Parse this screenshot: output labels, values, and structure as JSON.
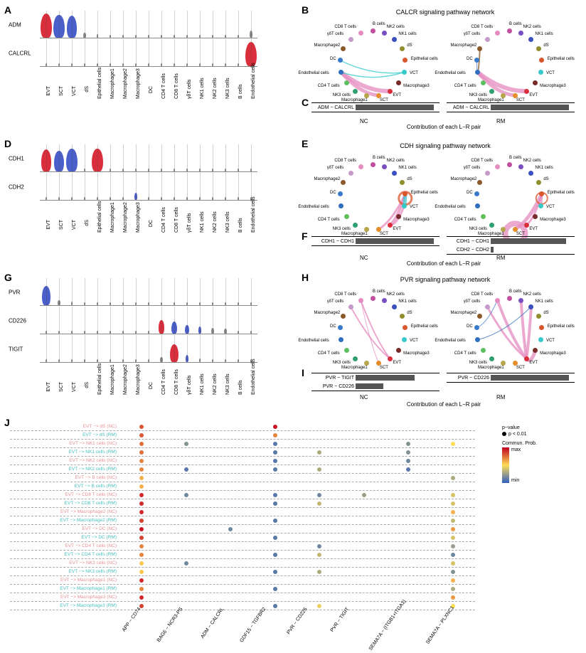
{
  "cell_types": [
    "EVT",
    "SCT",
    "VCT",
    "dS",
    "Epithelial cells",
    "Macrophage1",
    "Macrophage2",
    "Macrophage3",
    "DC",
    "CD4 T cells",
    "CD8 T cells",
    "γδT cells",
    "NK1 cells",
    "NK2 cells",
    "NK3 cells",
    "B cells",
    "Endothelial cells"
  ],
  "cell_colors": {
    "EVT": "#d92f3c",
    "SCT": "#e58c2b",
    "VCT": "#36c9c9",
    "dS": "#8e8e2b",
    "Epithelial cells": "#d9552b",
    "Macrophage1": "#b7a64b",
    "Macrophage2": "#8a5a2b",
    "Macrophage3": "#7a2b2b",
    "DC": "#3a7acb",
    "CD4 T cells": "#5fbf5f",
    "CD8 T cells": "#e58cc0",
    "γδT cells": "#c59acb",
    "NK1 cells": "#3a4fc0",
    "NK2 cells": "#7a4fc0",
    "NK3 cells": "#2f9f6f",
    "B cells": "#c04f9f",
    "Endothelial cells": "#2f6fbf"
  },
  "panelA": {
    "genes": [
      "ADM",
      "CALCRL"
    ],
    "expr": {
      "ADM": {
        "EVT": 1.0,
        "SCT": 0.95,
        "VCT": 0.9,
        "dS": 0.2,
        "Epithelial cells": 0.15,
        "Macrophage1": 0.05,
        "Macrophage2": 0.05,
        "Macrophage3": 0.05,
        "DC": 0.05,
        "CD4 T cells": 0.05,
        "CD8 T cells": 0.05,
        "γδT cells": 0.05,
        "NK1 cells": 0.05,
        "NK2 cells": 0.05,
        "NK3 cells": 0.1,
        "B cells": 0.05,
        "Endothelial cells": 0.3
      },
      "CALCRL": {
        "EVT": 0.05,
        "SCT": 0.05,
        "VCT": 0.05,
        "dS": 0.05,
        "Epithelial cells": 0.05,
        "Macrophage1": 0.05,
        "Macrophage2": 0.05,
        "Macrophage3": 0.05,
        "DC": 0.05,
        "CD4 T cells": 0.05,
        "CD8 T cells": 0.05,
        "γδT cells": 0.05,
        "NK1 cells": 0.05,
        "NK2 cells": 0.05,
        "NK3 cells": 0.05,
        "B cells": 0.05,
        "Endothelial cells": 1.0
      }
    },
    "violin_colors": {
      "ADM": {
        "EVT": "#d92f3c",
        "SCT": "#4a5fc9",
        "VCT": "#4a5fc9",
        "default": "#888"
      },
      "CALCRL": {
        "Endothelial cells": "#d92f3c",
        "default": "#888"
      }
    }
  },
  "panelD": {
    "genes": [
      "CDH1",
      "CDH2"
    ],
    "expr": {
      "CDH1": {
        "EVT": 0.9,
        "SCT": 0.85,
        "VCT": 0.95,
        "dS": 0.1,
        "Epithelial cells": 0.95,
        "Macrophage1": 0.05,
        "Macrophage2": 0.05,
        "Macrophage3": 0.05,
        "DC": 0.05,
        "CD4 T cells": 0.05,
        "CD8 T cells": 0.05,
        "γδT cells": 0.05,
        "NK1 cells": 0.05,
        "NK2 cells": 0.05,
        "NK3 cells": 0.05,
        "B cells": 0.05,
        "Endothelial cells": 0.1
      },
      "CDH2": {
        "EVT": 0.05,
        "SCT": 0.05,
        "VCT": 0.05,
        "dS": 0.05,
        "Epithelial cells": 0.05,
        "Macrophage1": 0.05,
        "Macrophage2": 0.05,
        "Macrophage3": 0.3,
        "DC": 0.1,
        "CD4 T cells": 0.05,
        "CD8 T cells": 0.05,
        "γδT cells": 0.05,
        "NK1 cells": 0.05,
        "NK2 cells": 0.05,
        "NK3 cells": 0.05,
        "B cells": 0.05,
        "Endothelial cells": 0.1
      }
    },
    "violin_colors": {
      "CDH1": {
        "EVT": "#d92f3c",
        "SCT": "#4a5fc9",
        "VCT": "#4a5fc9",
        "Epithelial cells": "#d92f3c",
        "default": "#888"
      },
      "CDH2": {
        "Macrophage3": "#4a5fc9",
        "default": "#888"
      }
    }
  },
  "panelG": {
    "genes": [
      "PVR",
      "CD226",
      "TIGIT"
    ],
    "expr": {
      "PVR": {
        "EVT": 0.8,
        "SCT": 0.2,
        "VCT": 0.15,
        "dS": 0.1,
        "Epithelial cells": 0.1,
        "Macrophage1": 0.05,
        "Macrophage2": 0.05,
        "Macrophage3": 0.05,
        "DC": 0.05,
        "CD4 T cells": 0.05,
        "CD8 T cells": 0.05,
        "γδT cells": 0.05,
        "NK1 cells": 0.05,
        "NK2 cells": 0.05,
        "NK3 cells": 0.05,
        "B cells": 0.05,
        "Endothelial cells": 0.1
      },
      "CD226": {
        "EVT": 0.05,
        "SCT": 0.05,
        "VCT": 0.05,
        "dS": 0.05,
        "Epithelial cells": 0.05,
        "Macrophage1": 0.1,
        "Macrophage2": 0.1,
        "Macrophage3": 0.1,
        "DC": 0.1,
        "CD4 T cells": 0.55,
        "CD8 T cells": 0.5,
        "γδT cells": 0.35,
        "NK1 cells": 0.3,
        "NK2 cells": 0.25,
        "NK3 cells": 0.2,
        "B cells": 0.1,
        "Endothelial cells": 0.05
      },
      "TIGIT": {
        "EVT": 0.05,
        "SCT": 0.05,
        "VCT": 0.05,
        "dS": 0.05,
        "Epithelial cells": 0.05,
        "Macrophage1": 0.05,
        "Macrophage2": 0.05,
        "Macrophage3": 0.05,
        "DC": 0.05,
        "CD4 T cells": 0.2,
        "CD8 T cells": 0.75,
        "γδT cells": 0.3,
        "NK1 cells": 0.15,
        "NK2 cells": 0.1,
        "NK3 cells": 0.1,
        "B cells": 0.05,
        "Endothelial cells": 0.05
      }
    },
    "violin_colors": {
      "PVR": {
        "EVT": "#4a5fc9",
        "default": "#888"
      },
      "CD226": {
        "CD4 T cells": "#d92f3c",
        "CD8 T cells": "#4a5fc9",
        "γδT cells": "#4a5fc9",
        "NK1 cells": "#4a5fc9",
        "default": "#888"
      },
      "TIGIT": {
        "CD8 T cells": "#d92f3c",
        "γδT cells": "#4a5fc9",
        "default": "#888"
      }
    }
  },
  "networks": {
    "B": {
      "title": "CALCR signaling pathway network",
      "NC": {
        "edges": [
          {
            "from": "SCT",
            "to": "Endothelial cells",
            "w": 5,
            "color": "#e58cc0"
          },
          {
            "from": "EVT",
            "to": "Endothelial cells",
            "w": 6,
            "color": "#e58cc0"
          },
          {
            "from": "VCT",
            "to": "DC",
            "w": 1.5,
            "color": "#36c9c9"
          },
          {
            "from": "VCT",
            "to": "Endothelial cells",
            "w": 1.5,
            "color": "#36c9c9"
          }
        ]
      },
      "RM": {
        "edges": [
          {
            "from": "SCT",
            "to": "Endothelial cells",
            "w": 5,
            "color": "#e58cc0"
          },
          {
            "from": "EVT",
            "to": "Endothelial cells",
            "w": 6,
            "color": "#e58cc0"
          },
          {
            "from": "Macrophage2",
            "to": "Endothelial cells",
            "w": 2,
            "color": "#8a5a2b"
          },
          {
            "from": "DC",
            "to": "Endothelial cells",
            "w": 1,
            "color": "#3a7acb"
          }
        ]
      }
    },
    "E": {
      "title": "CDH signaling pathway network",
      "NC": {
        "edges": [
          {
            "from": "EVT",
            "to": "VCT",
            "w": 3,
            "color": "#e58cc0"
          },
          {
            "from": "EVT",
            "to": "Epithelial cells",
            "w": 4,
            "color": "#e58cc0"
          },
          {
            "from": "SCT",
            "to": "Epithelial cells",
            "w": 3,
            "color": "#e58cc0"
          },
          {
            "from": "VCT",
            "to": "Epithelial cells",
            "w": 5,
            "color": "#36c9c9"
          },
          {
            "from": "Epithelial cells",
            "to": "Epithelial cells",
            "w": 3,
            "color": "#d9552b",
            "self": true
          }
        ]
      },
      "RM": {
        "edges": [
          {
            "from": "SCT",
            "to": "Epithelial cells",
            "w": 5,
            "color": "#e58cc0"
          },
          {
            "from": "EVT",
            "to": "Epithelial cells",
            "w": 3,
            "color": "#e58cc0"
          },
          {
            "from": "VCT",
            "to": "Epithelial cells",
            "w": 3,
            "color": "#e58cc0"
          },
          {
            "from": "SCT",
            "to": "SCT",
            "w": 8,
            "color": "#e58cc0",
            "self": true
          },
          {
            "from": "Epithelial cells",
            "to": "Epithelial cells",
            "w": 2,
            "color": "#d9552b",
            "self": true
          }
        ]
      }
    },
    "H": {
      "title": "PVR signaling pathway network",
      "NC": {
        "edges": [
          {
            "from": "EVT",
            "to": "CD8 T cells",
            "w": 2,
            "color": "#e58cc0"
          },
          {
            "from": "EVT",
            "to": "γδT cells",
            "w": 2,
            "color": "#e58cc0"
          },
          {
            "from": "SCT",
            "to": "CD8 T cells",
            "w": 1,
            "color": "#e58cc0"
          }
        ]
      },
      "RM": {
        "edges": [
          {
            "from": "EVT",
            "to": "NK2 cells",
            "w": 4,
            "color": "#e58cc0"
          },
          {
            "from": "EVT",
            "to": "NK1 cells",
            "w": 4,
            "color": "#e58cc0"
          },
          {
            "from": "EVT",
            "to": "CD8 T cells",
            "w": 4,
            "color": "#e58cc0"
          },
          {
            "from": "EVT",
            "to": "Macrophage3",
            "w": 5,
            "color": "#e58cc0"
          },
          {
            "from": "EVT",
            "to": "γδT cells",
            "w": 3,
            "color": "#e58cc0"
          },
          {
            "from": "DC",
            "to": "CD8 T cells",
            "w": 1,
            "color": "#3a7acb"
          },
          {
            "from": "Endothelial cells",
            "to": "NK1 cells",
            "w": 1,
            "color": "#2f6fbf"
          }
        ]
      }
    }
  },
  "contrib": {
    "C": {
      "NC": [
        {
          "pair": "ADM − CALCRL",
          "v": 1.0
        }
      ],
      "RM": [
        {
          "pair": "ADM − CALCRL",
          "v": 1.0
        }
      ],
      "caption": "Contribution of each L−R pair"
    },
    "F": {
      "NC": [
        {
          "pair": "CDH1 − CDH1",
          "v": 1.0
        }
      ],
      "RM": [
        {
          "pair": "CDH1 − CDH1",
          "v": 0.96
        },
        {
          "pair": "CDH2 − CDH2",
          "v": 0.04
        }
      ],
      "caption": "Contribution of each L−R pair"
    },
    "I": {
      "NC": [
        {
          "pair": "PVR − TIGIT",
          "v": 0.75
        },
        {
          "pair": "PVR − CD226",
          "v": 0.35
        }
      ],
      "RM": [
        {
          "pair": "PVR − CD226",
          "v": 1.0
        }
      ],
      "caption": "Contribution of each L−R pair"
    }
  },
  "panelJ": {
    "y": [
      "EVT −> dS (NC)",
      "EVT −> dS (RM)",
      "EVT −> NK1 cells (NC)",
      "EVT −> NK1 cells (RM)",
      "EVT −> NK2 cells (NC)",
      "EVT −> NK2 cells (RM)",
      "EVT −> B cells (NC)",
      "EVT −> B cells (RM)",
      "EVT −> CD8 T cells (NC)",
      "EVT −> CD8 T cells (RM)",
      "EVT −> Macrophage2 (NC)",
      "EVT −> Macrophage2 (RM)",
      "EVT −> DC (NC)",
      "EVT −> DC (RM)",
      "EVT −> CD4 T cells (NC)",
      "EVT −> CD4 T cells (RM)",
      "EVT −> NK3 cells (NC)",
      "EVT −> NK3 cells (RM)",
      "EVT −> Macrophage1 (NC)",
      "EVT −> Macrophage1 (RM)",
      "EVT −> Macrophage3 (NC)",
      "EVT −> Macrophage3 (RM)"
    ],
    "y_colors_nc": "#e89090",
    "y_colors_rm": "#46bfbf",
    "x": [
      "APP − CD74",
      "BAG6 − NCR3-PS",
      "ADM − CALCRL",
      "GDF15 − TGFBR2",
      "PVR − CD226",
      "PVR − TIGIT",
      "SEMA7A −\n(ITGB1+ITGA1)",
      "SEMA7A − PLXNC1"
    ],
    "dots": {
      "0": {
        "0": 0.8,
        "3": 0.95
      },
      "1": {
        "0": 0.8,
        "3": 0.7
      },
      "2": {
        "0": 0.75,
        "1": 0.2,
        "3": 0.1,
        "6": 0.2,
        "7": 0.5
      },
      "3": {
        "0": 0.75,
        "3": 0.1,
        "4": 0.3,
        "6": 0.2
      },
      "4": {
        "0": 0.7,
        "3": 0.1,
        "6": 0.15
      },
      "5": {
        "0": 0.7,
        "1": 0.1,
        "3": 0.1,
        "4": 0.3,
        "6": 0.1
      },
      "6": {
        "0": 0.6,
        "7": 0.3
      },
      "7": {
        "0": 0.6
      },
      "8": {
        "0": 0.9,
        "1": 0.15,
        "3": 0.1,
        "4": 0.15,
        "5": 0.25,
        "7": 0.4
      },
      "9": {
        "0": 0.9,
        "3": 0.1,
        "4": 0.35,
        "7": 0.4
      },
      "10": {
        "0": 0.9,
        "7": 0.6
      },
      "11": {
        "0": 0.85,
        "3": 0.1,
        "7": 0.35
      },
      "12": {
        "0": 0.95,
        "2": 0.15,
        "7": 0.65
      },
      "13": {
        "0": 0.85,
        "3": 0.1,
        "7": 0.4
      },
      "14": {
        "0": 0.7,
        "4": 0.15,
        "7": 0.25
      },
      "15": {
        "0": 0.7,
        "3": 0.1,
        "4": 0.35,
        "7": 0.15
      },
      "16": {
        "0": 0.55,
        "1": 0.15,
        "7": 0.4
      },
      "17": {
        "0": 0.55,
        "3": 0.1,
        "4": 0.3,
        "7": 0.2
      },
      "18": {
        "0": 0.9,
        "7": 0.6
      },
      "19": {
        "0": 0.7,
        "3": 0.1,
        "7": 0.3
      },
      "20": {
        "0": 0.9,
        "7": 0.65
      },
      "21": {
        "0": 0.85,
        "3": 0.1,
        "4": 0.45,
        "7": 0.5
      }
    },
    "legend": {
      "pvalue": "p−value",
      "p_item": "p < 0.01",
      "prob": "Commun. Prob.",
      "max": "max",
      "min": "min"
    },
    "colormap": [
      "#c00020",
      "#ffdd55",
      "#3060c0"
    ]
  },
  "labels": {
    "nc": "NC",
    "rm": "RM"
  }
}
